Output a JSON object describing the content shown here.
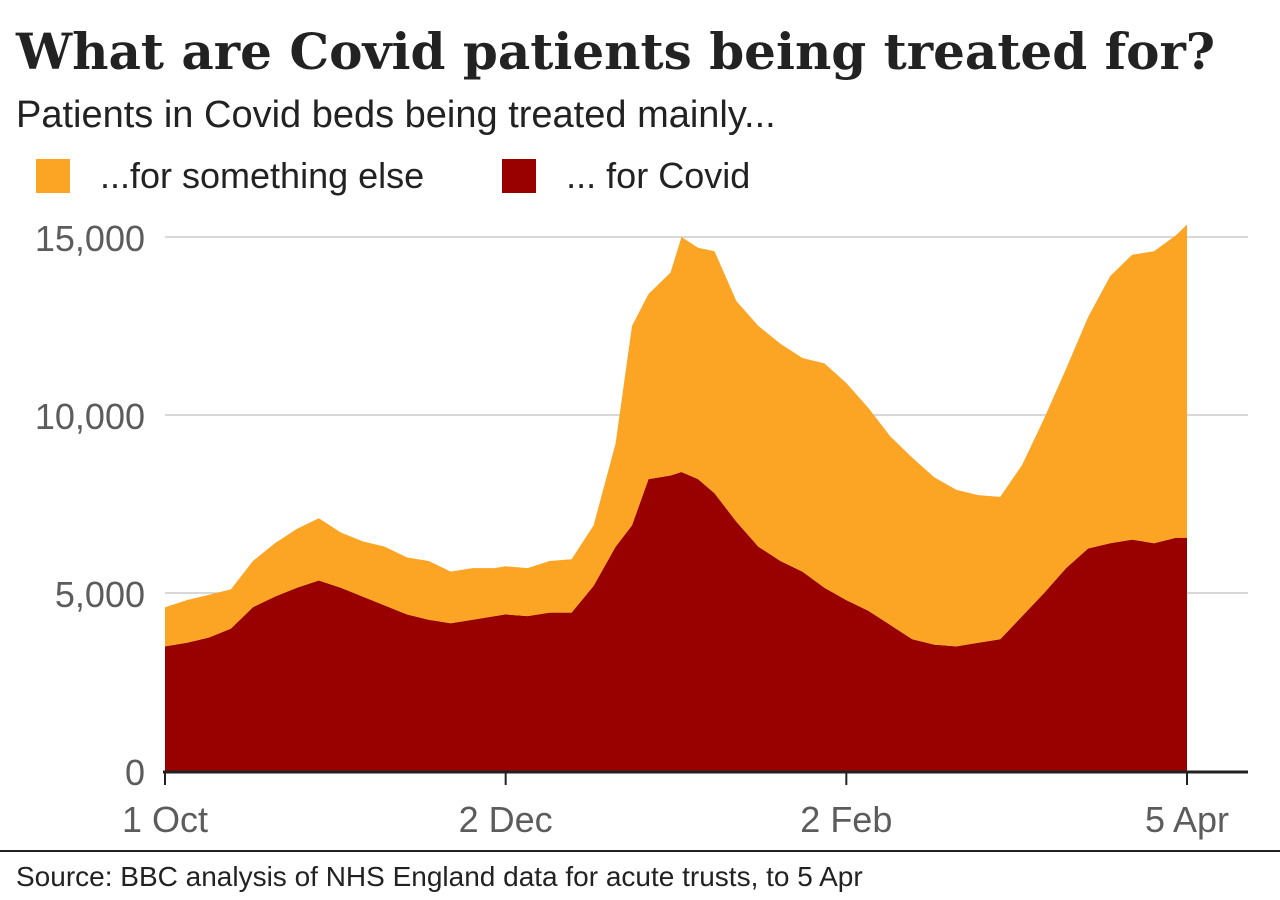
{
  "header": {
    "title": "What are Covid patients being treated for?",
    "subtitle": "Patients in Covid beds being treated mainly..."
  },
  "legend": [
    {
      "label": "...for something else",
      "color": "#fca424"
    },
    {
      "label": "... for Covid",
      "color": "#990000"
    }
  ],
  "footer": {
    "source": "Source: BBC analysis of NHS England data for acute trusts, to  5 Apr"
  },
  "chart_data": {
    "type": "area",
    "stacked": true,
    "title": "What are Covid patients being treated for?",
    "subtitle": "Patients in Covid beds being treated mainly...",
    "x_range": [
      "2021-10-01",
      "2022-04-05"
    ],
    "x_ticks": [
      {
        "date": "2021-10-01",
        "label": "1 Oct"
      },
      {
        "date": "2021-12-02",
        "label": "2 Dec"
      },
      {
        "date": "2022-02-02",
        "label": "2 Feb"
      },
      {
        "date": "2022-04-05",
        "label": "5 Apr"
      }
    ],
    "ylim": [
      0,
      15000
    ],
    "y_ticks": [
      {
        "value": 0,
        "label": "0"
      },
      {
        "value": 5000,
        "label": "5,000"
      },
      {
        "value": 10000,
        "label": "10,000"
      },
      {
        "value": 15000,
        "label": "15,000"
      }
    ],
    "grid": true,
    "legend_position": "top-left",
    "x": [
      "2021-10-01",
      "2021-10-05",
      "2021-10-09",
      "2021-10-13",
      "2021-10-17",
      "2021-10-21",
      "2021-10-25",
      "2021-10-29",
      "2021-11-02",
      "2021-11-06",
      "2021-11-10",
      "2021-11-14",
      "2021-11-18",
      "2021-11-22",
      "2021-11-26",
      "2021-11-30",
      "2021-12-02",
      "2021-12-06",
      "2021-12-10",
      "2021-12-14",
      "2021-12-18",
      "2021-12-22",
      "2021-12-25",
      "2021-12-28",
      "2022-01-01",
      "2022-01-03",
      "2022-01-06",
      "2022-01-09",
      "2022-01-13",
      "2022-01-17",
      "2022-01-21",
      "2022-01-25",
      "2022-01-29",
      "2022-02-02",
      "2022-02-06",
      "2022-02-10",
      "2022-02-14",
      "2022-02-18",
      "2022-02-22",
      "2022-02-26",
      "2022-03-02",
      "2022-03-06",
      "2022-03-10",
      "2022-03-14",
      "2022-03-18",
      "2022-03-22",
      "2022-03-26",
      "2022-03-30",
      "2022-04-03",
      "2022-04-05"
    ],
    "series": [
      {
        "name": "... for Covid",
        "color": "#990000",
        "values": [
          3500,
          3600,
          3750,
          4000,
          4600,
          4900,
          5150,
          5350,
          5150,
          4900,
          4650,
          4400,
          4250,
          4150,
          4250,
          4350,
          4400,
          4350,
          4450,
          4450,
          5200,
          6300,
          6900,
          8200,
          8300,
          8400,
          8200,
          7800,
          7000,
          6300,
          5900,
          5600,
          5150,
          4800,
          4500,
          4100,
          3700,
          3550,
          3500,
          3600,
          3700,
          4350,
          5000,
          5700,
          6250,
          6400,
          6500,
          6400,
          6550,
          6550
        ]
      },
      {
        "name": "...for something else",
        "color": "#fca424",
        "values": [
          1100,
          1200,
          1200,
          1100,
          1300,
          1500,
          1650,
          1750,
          1550,
          1550,
          1650,
          1600,
          1650,
          1450,
          1450,
          1350,
          1350,
          1350,
          1450,
          1500,
          1700,
          2900,
          5600,
          5200,
          5700,
          6600,
          6500,
          6800,
          6200,
          6200,
          6100,
          6000,
          6300,
          6100,
          5700,
          5300,
          5100,
          4700,
          4400,
          4150,
          4000,
          4250,
          4900,
          5600,
          6500,
          7500,
          8000,
          8200,
          8500,
          8800
        ]
      }
    ]
  }
}
